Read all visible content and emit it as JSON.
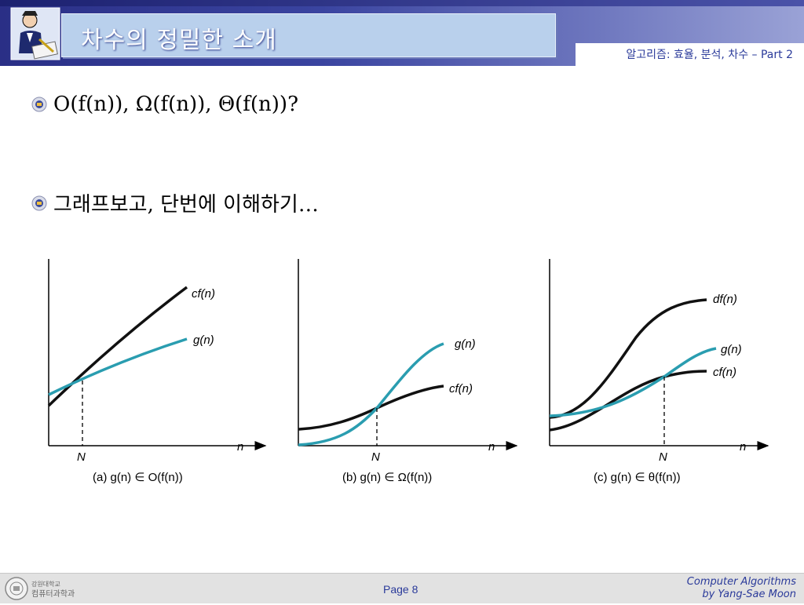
{
  "header": {
    "title": "차수의 정밀한 소개",
    "subtitle": "알고리즘: 효율, 분석, 차수 – Part 2"
  },
  "bullets": [
    {
      "text": "O(f(n)), Ω(f(n)), Θ(f(n))?"
    },
    {
      "text": "그래프보고, 단번에 이해하기…"
    }
  ],
  "figures": [
    {
      "caption": "(a) g(n) ∈ O(f(n))",
      "upper_label": "cf(n)",
      "lower_label": "g(n)",
      "x_label": "n",
      "n_label": "N"
    },
    {
      "caption": "(b) g(n) ∈ Ω(f(n))",
      "upper_label": "g(n)",
      "lower_label": "cf(n)",
      "x_label": "n",
      "n_label": "N"
    },
    {
      "caption": "(c) g(n) ∈ θ(f(n))",
      "top_label": "df(n)",
      "mid_label": "g(n)",
      "bottom_label": "cf(n)",
      "x_label": "n",
      "n_label": "N"
    }
  ],
  "footer": {
    "university_text": "강원대학교",
    "department_text": "컴퓨터과학과",
    "page": "Page 8",
    "credit_line1": "Computer Algorithms",
    "credit_line2": "by Yang-Sae Moon"
  },
  "colors": {
    "black_curve": "#111111",
    "teal_curve": "#2a9db0"
  }
}
